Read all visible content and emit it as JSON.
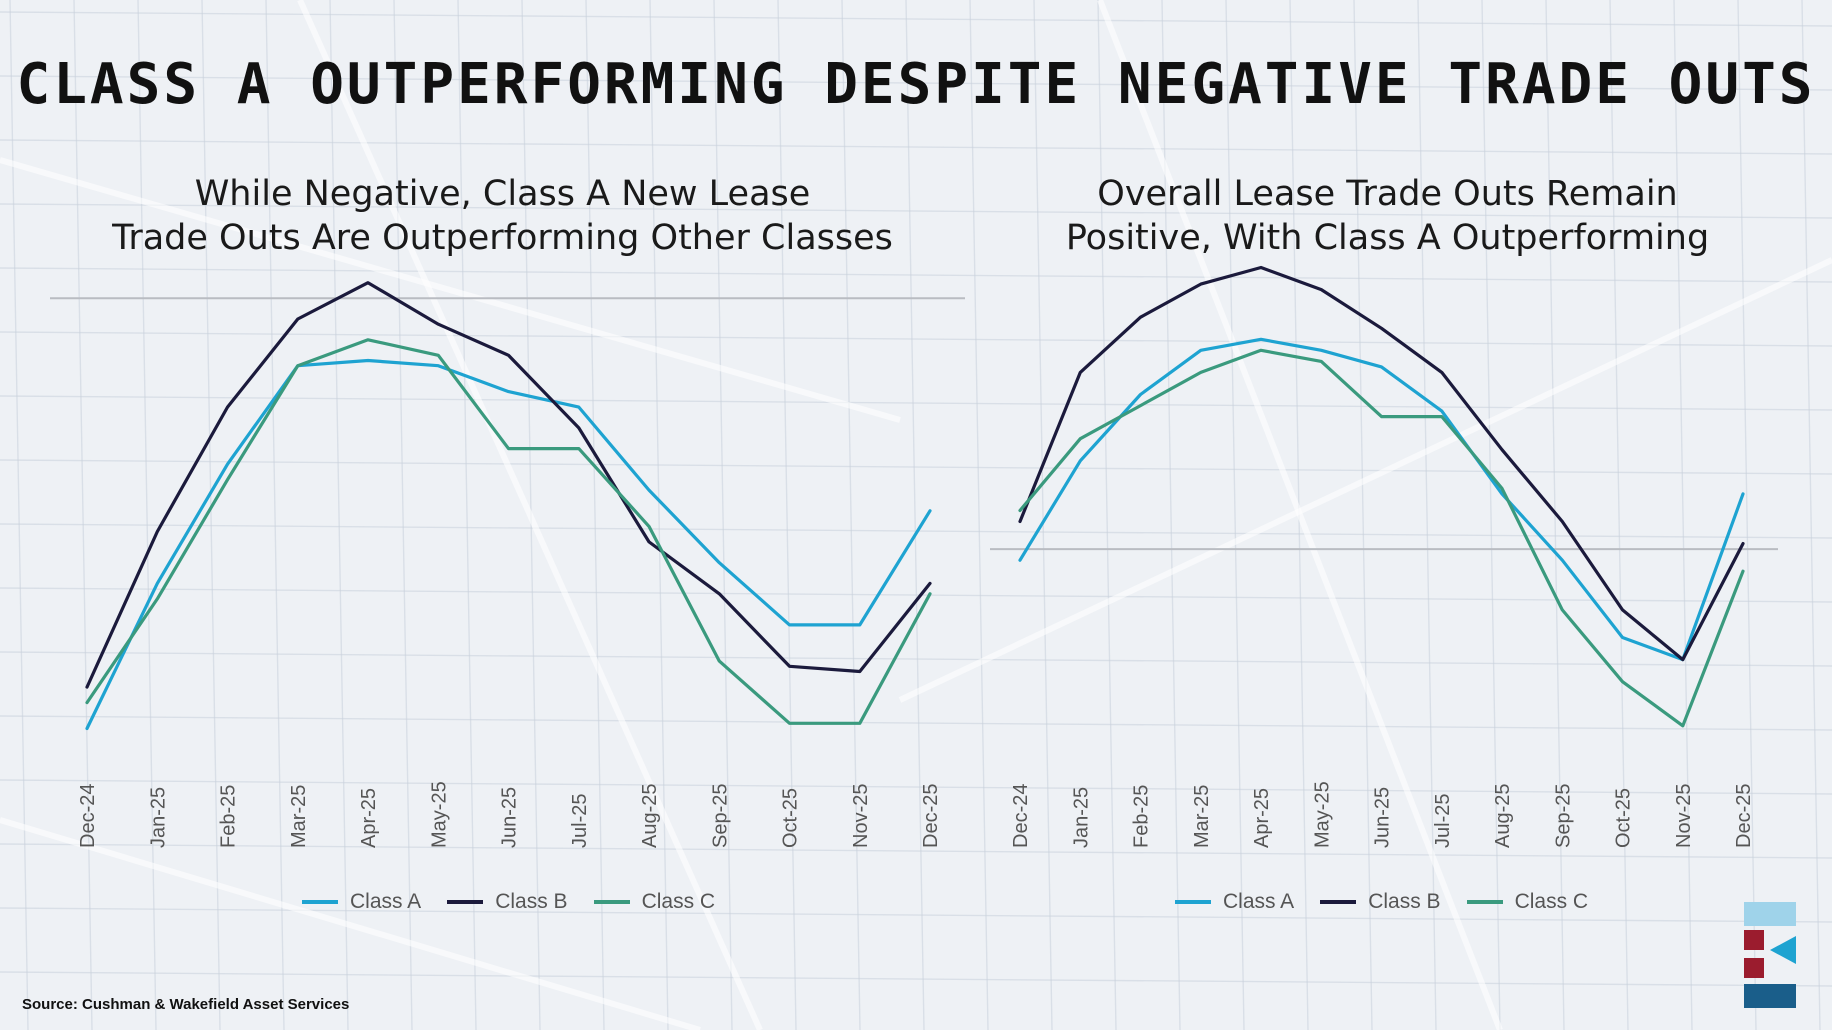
{
  "title": "CLASS A OUTPERFORMING DESPITE NEGATIVE TRADE OUTS",
  "source": "Source: Cushman & Wakefield Asset Services",
  "colors": {
    "class_a": "#1ea3d1",
    "class_b": "#1b1a3c",
    "class_c": "#3a9a7e",
    "baseline": "#b9bcc2",
    "tick_label": "#555555"
  },
  "chart_data": [
    {
      "type": "line",
      "title_lines": [
        "While Negative, Class A New Lease",
        "Trade Outs Are Outperforming Other Classes"
      ],
      "categories": [
        "Dec-24",
        "Jan-25",
        "Feb-25",
        "Mar-25",
        "Apr-25",
        "May-25",
        "Jun-25",
        "Jul-25",
        "Aug-25",
        "Sep-25",
        "Oct-25",
        "Nov-25",
        "Dec-25"
      ],
      "series": [
        {
          "name": "Class A",
          "values": [
            -43.0,
            -29.0,
            -17.5,
            -8.0,
            -7.5,
            -8.0,
            -10.5,
            -12.0,
            -20.0,
            -27.0,
            -33.0,
            -33.0,
            -22.0
          ]
        },
        {
          "name": "Class B",
          "values": [
            -39.0,
            -24.0,
            -12.0,
            -3.5,
            0.0,
            -4.0,
            -7.0,
            -14.0,
            -25.0,
            -30.0,
            -37.0,
            -37.5,
            -29.0
          ]
        },
        {
          "name": "Class C",
          "values": [
            -40.5,
            -30.5,
            -19.0,
            -8.0,
            -5.5,
            -7.0,
            -16.0,
            -16.0,
            -23.5,
            -36.5,
            -42.5,
            -42.5,
            -30.0
          ]
        }
      ],
      "ylim": [
        -47,
        2
      ],
      "baseline_value": -1.5,
      "legend": "bottom",
      "grid": false
    },
    {
      "type": "line",
      "title_lines": [
        "Overall Lease Trade Outs Remain",
        "Positive, With Class A Outperforming"
      ],
      "categories": [
        "Dec-24",
        "Jan-25",
        "Feb-25",
        "Mar-25",
        "Apr-25",
        "May-25",
        "Jun-25",
        "Jul-25",
        "Aug-25",
        "Sep-25",
        "Oct-25",
        "Nov-25",
        "Dec-25"
      ],
      "series": [
        {
          "name": "Class A",
          "values": [
            -1.0,
            8.0,
            14.0,
            18.0,
            19.0,
            18.0,
            16.5,
            12.5,
            5.0,
            -1.0,
            -8.0,
            -10.0,
            5.0
          ]
        },
        {
          "name": "Class B",
          "values": [
            2.5,
            16.0,
            21.0,
            24.0,
            25.5,
            23.5,
            20.0,
            16.0,
            9.0,
            2.5,
            -5.5,
            -10.0,
            0.5
          ]
        },
        {
          "name": "Class C",
          "values": [
            3.5,
            10.0,
            13.0,
            16.0,
            18.0,
            17.0,
            12.0,
            12.0,
            5.5,
            -5.5,
            -12.0,
            -16.0,
            -2.0
          ]
        }
      ],
      "ylim": [
        -20,
        26
      ],
      "baseline_value": 0,
      "legend": "bottom",
      "grid": false
    }
  ]
}
